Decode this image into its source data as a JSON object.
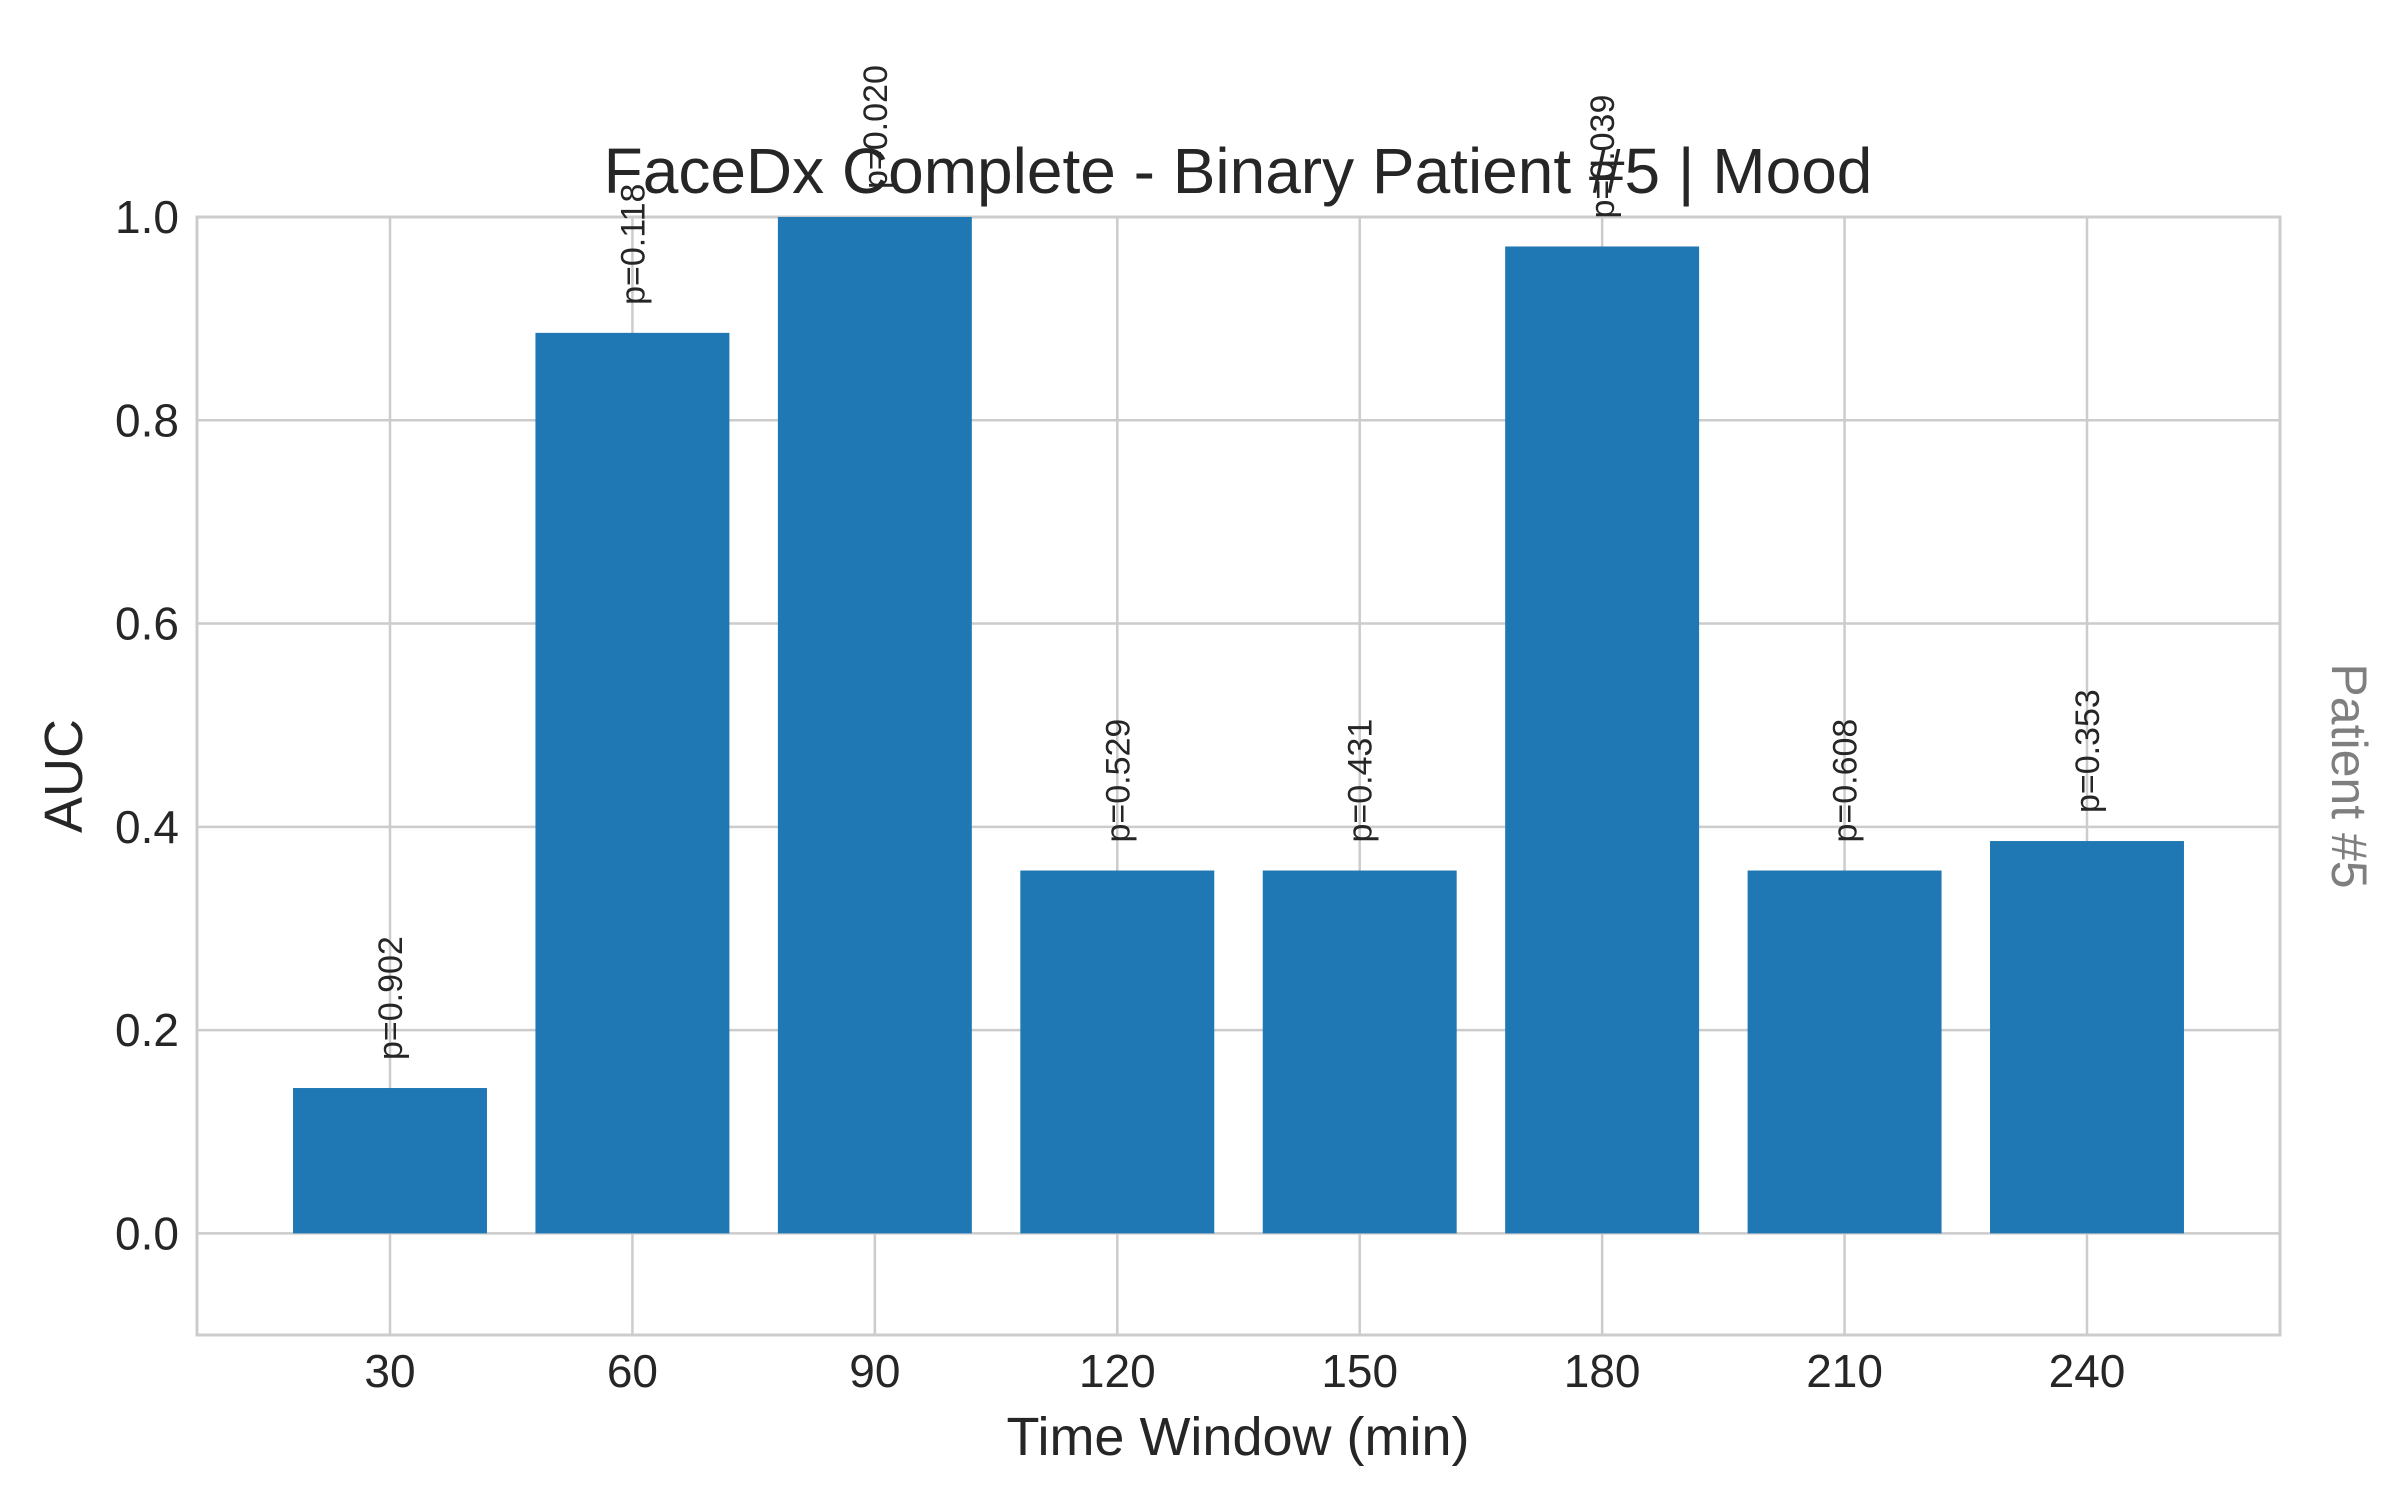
{
  "chart_data": {
    "type": "bar",
    "title": "FaceDx Complete - Binary Patient #5 | Mood",
    "xlabel": "Time Window (min)",
    "ylabel": "AUC",
    "side_label": "Patient #5",
    "categories": [
      "30",
      "60",
      "90",
      "120",
      "150",
      "180",
      "210",
      "240"
    ],
    "values": [
      0.143,
      0.886,
      1.0,
      0.357,
      0.357,
      0.971,
      0.357,
      0.386
    ],
    "annotations": [
      "p=0.902",
      "p=0.118",
      "p=0.020",
      "p=0.529",
      "p=0.431",
      "p=0.039",
      "p=0.608",
      "p=0.353"
    ],
    "ylim": [
      -0.1,
      1.0
    ],
    "yticks": [
      "0.0",
      "0.2",
      "0.4",
      "0.6",
      "0.8",
      "1.0"
    ],
    "grid": true,
    "bar_color": "#1f77b4"
  }
}
